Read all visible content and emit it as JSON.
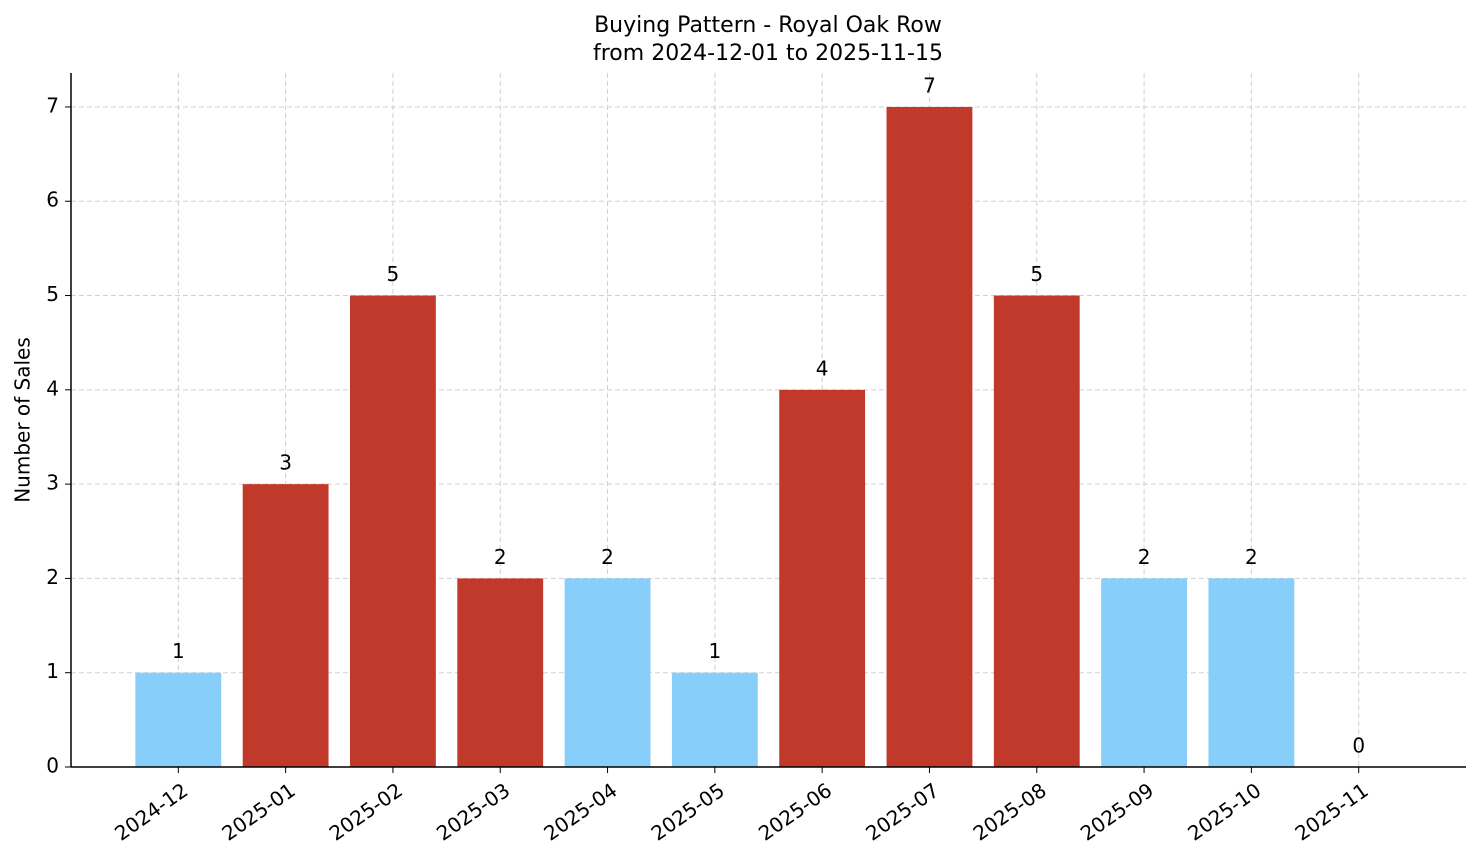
{
  "chart_data": {
    "type": "bar",
    "title": "Buying Pattern - Royal Oak Row",
    "subtitle": "from 2024-12-01 to 2025-11-15",
    "y_label": "Number of Sales",
    "categories": [
      "2024-12",
      "2025-01",
      "2025-02",
      "2025-03",
      "2025-04",
      "2025-05",
      "2025-06",
      "2025-07",
      "2025-08",
      "2025-09",
      "2025-10",
      "2025-11"
    ],
    "values": [
      1,
      3,
      5,
      2,
      2,
      1,
      4,
      7,
      5,
      2,
      2,
      0
    ],
    "colors": [
      "#87cefa",
      "#c0392b",
      "#c0392b",
      "#c0392b",
      "#87cefa",
      "#87cefa",
      "#c0392b",
      "#c0392b",
      "#c0392b",
      "#87cefa",
      "#87cefa",
      "#87cefa"
    ],
    "ylim": [
      0,
      7.36
    ],
    "yticks": [
      0,
      1,
      2,
      3,
      4,
      5,
      6,
      7
    ],
    "grid": true
  }
}
